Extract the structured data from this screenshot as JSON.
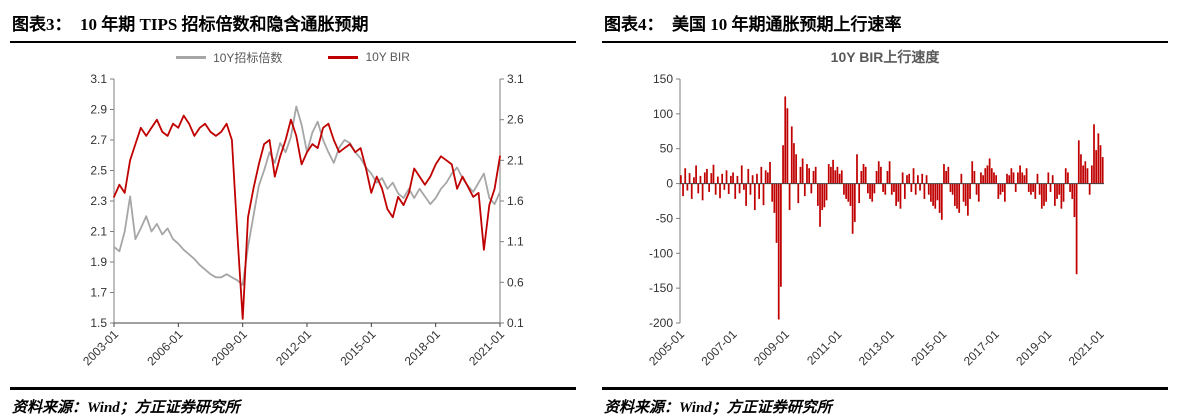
{
  "colors": {
    "red": "#c00000",
    "gray": "#a6a6a6",
    "axis_text": "#333333"
  },
  "panels": [
    {
      "header": "图表3：  10 年期 TIPS 招标倍数和隐含通胀预期",
      "source": "资料来源：Wind；方正证券研究所"
    },
    {
      "header": "图表4：  美国 10 年期通胀预期上行速率",
      "source": "资料来源：Wind；方正证券研究所"
    }
  ],
  "chart_data": [
    {
      "type": "line",
      "title": "",
      "legend": [
        {
          "label": "10Y招标倍数",
          "color": "#a6a6a6"
        },
        {
          "label": "10Y BIR",
          "color": "#c00000"
        }
      ],
      "x_start": "2003-01",
      "x_freq": "quarterly",
      "x_tick_labels": [
        "2003-01",
        "2006-01",
        "2009-01",
        "2012-01",
        "2015-01",
        "2018-01",
        "2021-01"
      ],
      "x_tick_indices": [
        0,
        12,
        24,
        36,
        48,
        60,
        72
      ],
      "left_axis": {
        "min": 1.5,
        "max": 3.1,
        "ticks": [
          "1.5",
          "1.7",
          "1.9",
          "2.1",
          "2.3",
          "2.5",
          "2.7",
          "2.9",
          "3.1"
        ]
      },
      "right_axis": {
        "min": 0.1,
        "max": 3.1,
        "ticks": [
          "0.1",
          "0.6",
          "1.1",
          "1.6",
          "2.1",
          "2.6",
          "3.1"
        ]
      },
      "grid": false,
      "legend_position": "top-center",
      "series": [
        {
          "name": "10Y招标倍数",
          "axis": "left",
          "color": "#a6a6a6",
          "values": [
            2.0,
            1.97,
            2.1,
            2.33,
            2.05,
            2.12,
            2.2,
            2.1,
            2.15,
            2.08,
            2.12,
            2.05,
            2.02,
            1.98,
            1.95,
            1.92,
            1.88,
            1.85,
            1.82,
            1.8,
            1.8,
            1.82,
            1.8,
            1.78,
            1.75,
            2.0,
            2.2,
            2.4,
            2.5,
            2.62,
            2.55,
            2.68,
            2.62,
            2.72,
            2.92,
            2.8,
            2.62,
            2.75,
            2.82,
            2.7,
            2.62,
            2.55,
            2.65,
            2.7,
            2.68,
            2.62,
            2.58,
            2.52,
            2.48,
            2.42,
            2.45,
            2.38,
            2.42,
            2.35,
            2.32,
            2.38,
            2.32,
            2.38,
            2.33,
            2.28,
            2.32,
            2.38,
            2.42,
            2.48,
            2.52,
            2.45,
            2.4,
            2.36,
            2.42,
            2.48,
            2.32,
            2.28,
            2.36
          ]
        },
        {
          "name": "10Y BIR",
          "axis": "right",
          "color": "#c00000",
          "values": [
            1.65,
            1.8,
            1.7,
            2.1,
            2.3,
            2.5,
            2.4,
            2.5,
            2.6,
            2.45,
            2.4,
            2.55,
            2.5,
            2.65,
            2.55,
            2.4,
            2.5,
            2.55,
            2.45,
            2.4,
            2.45,
            2.55,
            2.35,
            1.2,
            0.15,
            1.4,
            1.75,
            2.05,
            2.3,
            2.35,
            1.9,
            2.15,
            2.35,
            2.6,
            2.4,
            2.05,
            2.2,
            2.3,
            2.25,
            2.5,
            2.55,
            2.35,
            2.2,
            2.25,
            2.3,
            2.2,
            2.25,
            2.0,
            1.7,
            1.9,
            1.75,
            1.5,
            1.4,
            1.65,
            1.55,
            1.7,
            2.0,
            1.9,
            1.8,
            1.9,
            2.05,
            2.15,
            2.1,
            2.05,
            1.75,
            1.9,
            1.78,
            1.65,
            1.7,
            1.0,
            1.55,
            1.75,
            2.15
          ]
        }
      ]
    },
    {
      "type": "bar",
      "title": "10Y BIR上行速度",
      "bar_color": "#c00000",
      "x_start": "2005-01",
      "x_freq": "monthly",
      "x_tick_labels": [
        "2005-01",
        "2007-01",
        "2009-01",
        "2011-01",
        "2013-01",
        "2015-01",
        "2017-01",
        "2019-01",
        "2021-01"
      ],
      "x_tick_indices": [
        0,
        24,
        48,
        72,
        96,
        120,
        144,
        168,
        192
      ],
      "y_axis": {
        "min": -200,
        "max": 150,
        "ticks": [
          "150",
          "100",
          "50",
          "0",
          "-50",
          "-100",
          "-150",
          "-200"
        ]
      },
      "grid": false,
      "values": [
        12,
        -18,
        22,
        -10,
        15,
        -22,
        9,
        26,
        -14,
        11,
        -24,
        16,
        21,
        -12,
        15,
        27,
        -16,
        10,
        -21,
        14,
        -9,
        19,
        -15,
        11,
        16,
        -22,
        11,
        -14,
        26,
        -9,
        -32,
        21,
        -16,
        12,
        -38,
        14,
        -22,
        24,
        -31,
        19,
        16,
        31,
        -26,
        -42,
        -85,
        -195,
        -148,
        55,
        125,
        108,
        -38,
        82,
        58,
        42,
        -28,
        24,
        36,
        -18,
        28,
        22,
        -14,
        18,
        24,
        -32,
        -62,
        -38,
        -34,
        -24,
        28,
        24,
        34,
        19,
        24,
        14,
        19,
        -16,
        -22,
        -26,
        -32,
        -72,
        -55,
        42,
        -28,
        18,
        28,
        24,
        -14,
        -22,
        -26,
        -14,
        18,
        32,
        24,
        -12,
        -16,
        18,
        32,
        -16,
        -12,
        -32,
        -26,
        -36,
        16,
        -22,
        12,
        14,
        -12,
        22,
        -16,
        12,
        -10,
        14,
        -22,
        12,
        -16,
        -26,
        -32,
        -36,
        -24,
        -42,
        -52,
        28,
        18,
        24,
        -12,
        -16,
        -32,
        -36,
        -42,
        14,
        -26,
        -32,
        -46,
        -22,
        32,
        18,
        -16,
        -26,
        16,
        12,
        22,
        26,
        36,
        22,
        16,
        12,
        -22,
        -16,
        -12,
        -26,
        14,
        12,
        22,
        16,
        -12,
        16,
        26,
        16,
        12,
        22,
        -12,
        -16,
        -12,
        -22,
        14,
        -16,
        -36,
        -32,
        -26,
        16,
        -12,
        12,
        -32,
        -22,
        -16,
        -36,
        -26,
        22,
        16,
        -12,
        -22,
        -48,
        -130,
        62,
        42,
        26,
        32,
        22,
        -16,
        26,
        85,
        48,
        72,
        55,
        38
      ]
    }
  ]
}
